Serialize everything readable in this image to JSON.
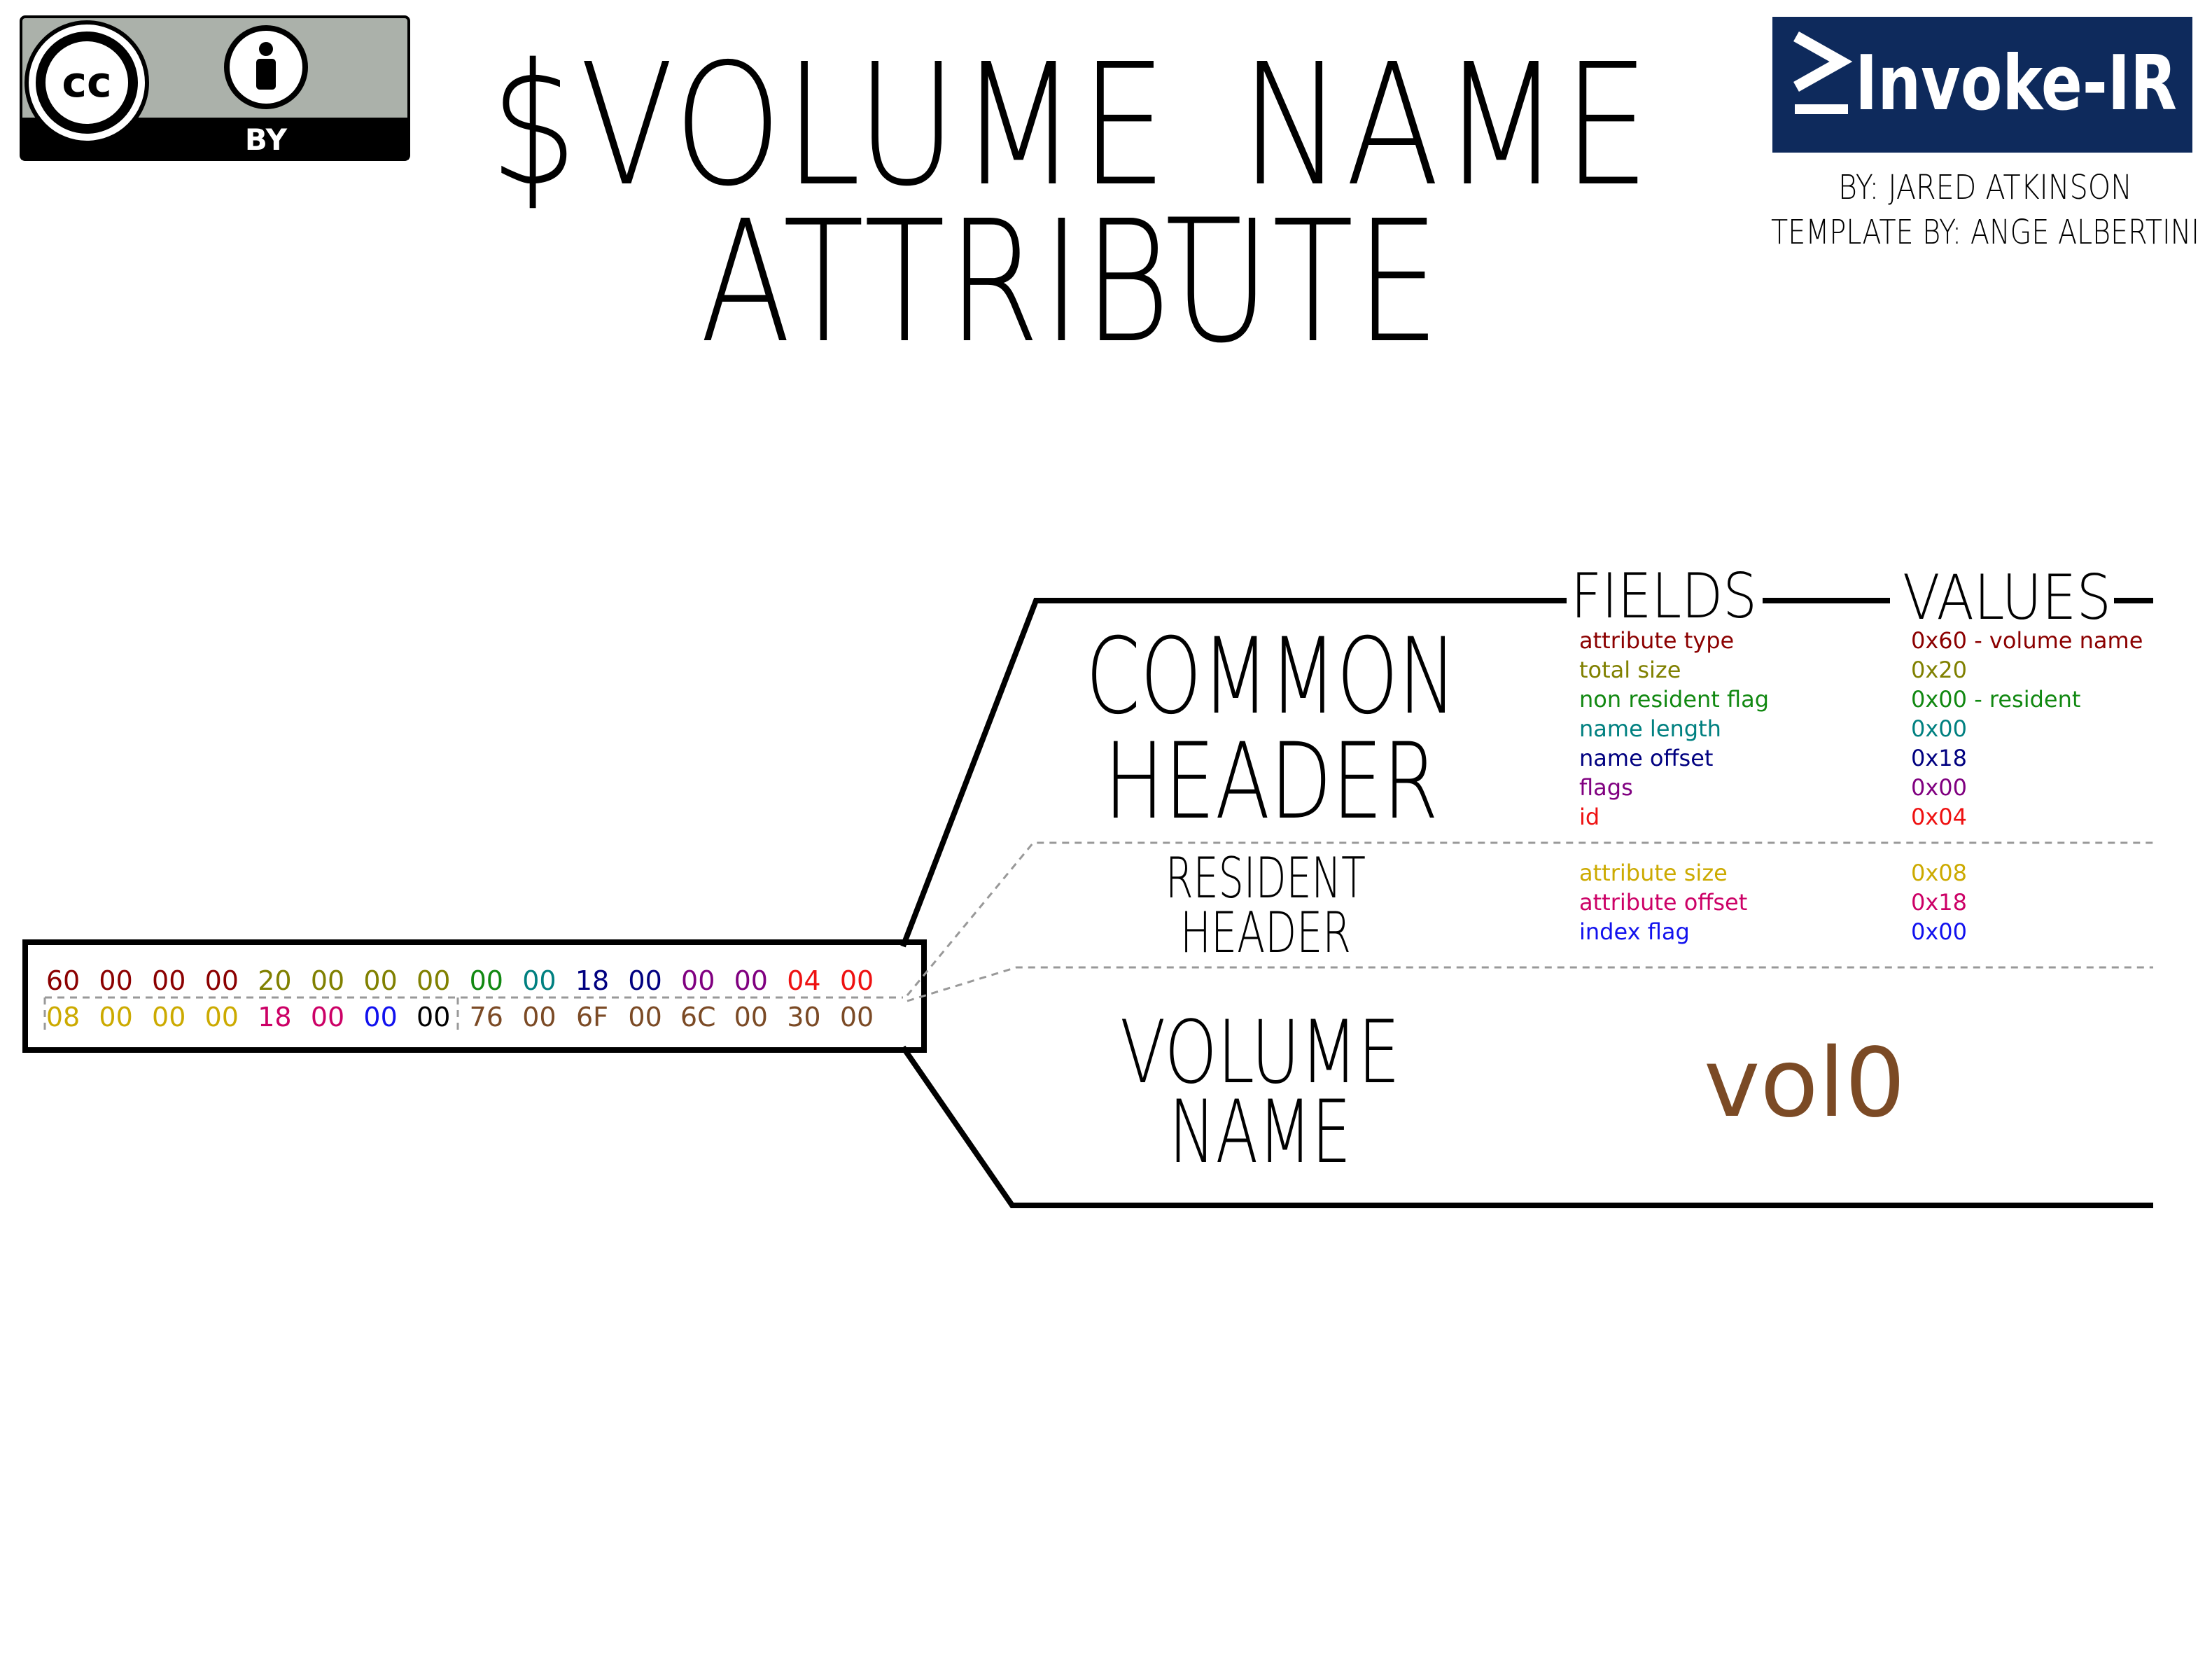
{
  "license": {
    "cc": "cc",
    "by": "BY",
    "icons": [
      "creative-commons-icon",
      "attribution-person-icon"
    ],
    "bg": "#abb1aa"
  },
  "title": {
    "line1": "$VOLUME_NAME",
    "line2": "ATTRIBUTE"
  },
  "brand": {
    "name": "Invoke-IR",
    "prompt_icon": "powershell-prompt-icon",
    "bg": "#0e2a5c",
    "author": "BY: JARED ATKINSON",
    "template": "TEMPLATE BY: ANGE ALBERTINI"
  },
  "headers": {
    "fields": "FIELDS",
    "values": "VALUES"
  },
  "sections": {
    "common": [
      "COMMON",
      "HEADER"
    ],
    "resident": [
      "RESIDENT",
      "HEADER"
    ],
    "volume": [
      "VOLUME",
      "NAME"
    ]
  },
  "fields": [
    {
      "name": "attribute type",
      "value": "0x60 - volume name",
      "color": "#8b0000"
    },
    {
      "name": "total size",
      "value": "0x20",
      "color": "#808000"
    },
    {
      "name": "non resident flag",
      "value": "0x00 - resident",
      "color": "#118811"
    },
    {
      "name": "name length",
      "value": "0x00",
      "color": "#008080"
    },
    {
      "name": "name offset",
      "value": "0x18",
      "color": "#000080"
    },
    {
      "name": "flags",
      "value": "0x00",
      "color": "#800080"
    },
    {
      "name": "id",
      "value": "0x04",
      "color": "#ee1111"
    },
    {
      "name": "attribute size",
      "value": "0x08",
      "color": "#ccaa00"
    },
    {
      "name": "attribute offset",
      "value": "0x18",
      "color": "#cc0066"
    },
    {
      "name": "index flag",
      "value": "0x00",
      "color": "#1111ee"
    }
  ],
  "volume_value": {
    "text": "vol0",
    "color": "#7b4a25"
  },
  "hex": {
    "row1": [
      {
        "b": "60",
        "c": "#8b0000"
      },
      {
        "b": "00",
        "c": "#8b0000"
      },
      {
        "b": "00",
        "c": "#8b0000"
      },
      {
        "b": "00",
        "c": "#8b0000"
      },
      {
        "b": "20",
        "c": "#808000"
      },
      {
        "b": "00",
        "c": "#808000"
      },
      {
        "b": "00",
        "c": "#808000"
      },
      {
        "b": "00",
        "c": "#808000"
      },
      {
        "b": "00",
        "c": "#118811"
      },
      {
        "b": "00",
        "c": "#008080"
      },
      {
        "b": "18",
        "c": "#000080"
      },
      {
        "b": "00",
        "c": "#000080"
      },
      {
        "b": "00",
        "c": "#800080"
      },
      {
        "b": "00",
        "c": "#800080"
      },
      {
        "b": "04",
        "c": "#ee1111"
      },
      {
        "b": "00",
        "c": "#ee1111"
      }
    ],
    "row2": [
      {
        "b": "08",
        "c": "#ccaa00"
      },
      {
        "b": "00",
        "c": "#ccaa00"
      },
      {
        "b": "00",
        "c": "#ccaa00"
      },
      {
        "b": "00",
        "c": "#ccaa00"
      },
      {
        "b": "18",
        "c": "#cc0066"
      },
      {
        "b": "00",
        "c": "#cc0066"
      },
      {
        "b": "00",
        "c": "#1111ee"
      },
      {
        "b": "00",
        "c": "#000000"
      },
      {
        "b": "76",
        "c": "#7b4a25"
      },
      {
        "b": "00",
        "c": "#7b4a25"
      },
      {
        "b": "6F",
        "c": "#7b4a25"
      },
      {
        "b": "00",
        "c": "#7b4a25"
      },
      {
        "b": "6C",
        "c": "#7b4a25"
      },
      {
        "b": "00",
        "c": "#7b4a25"
      },
      {
        "b": "30",
        "c": "#7b4a25"
      },
      {
        "b": "00",
        "c": "#7b4a25"
      }
    ]
  }
}
